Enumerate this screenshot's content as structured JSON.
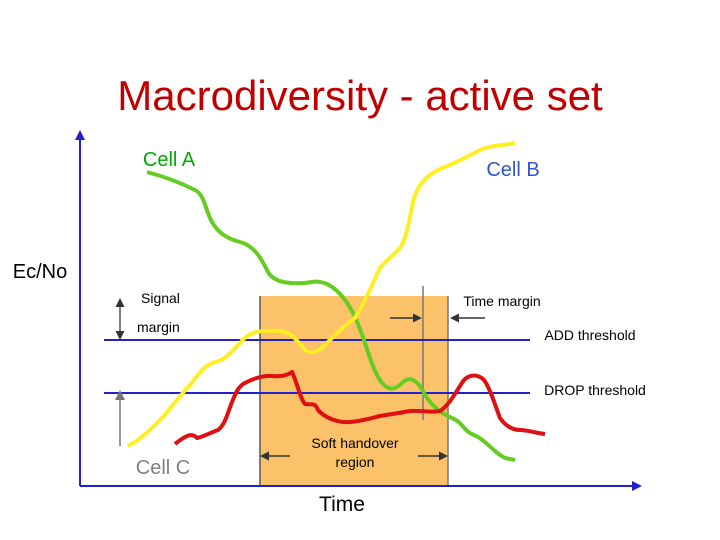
{
  "slide": {
    "title": "Macrodiversity - active set"
  },
  "axes": {
    "y_label": "Ec/No",
    "x_label": "Time"
  },
  "labels": {
    "cell_a": "Cell A",
    "cell_b": "Cell B",
    "cell_c": "Cell C",
    "signal": "Signal",
    "margin": "margin",
    "time_margin": "Time margin",
    "add_threshold": "ADD threshold",
    "drop_threshold": "DROP threshold",
    "soft_handover_line1": "Soft handover",
    "soft_handover_line2": "region"
  },
  "colors": {
    "title": "#c00000",
    "cell_a": "#00aa00",
    "cell_b": "#3355cc",
    "cell_c": "#7f7f7f",
    "curve_a": "#66cc22",
    "curve_b": "#ffee22",
    "curve_c": "#dd1111",
    "threshold": "#2222cc",
    "region": "#fcc26a",
    "axis": "#2222cc"
  }
}
